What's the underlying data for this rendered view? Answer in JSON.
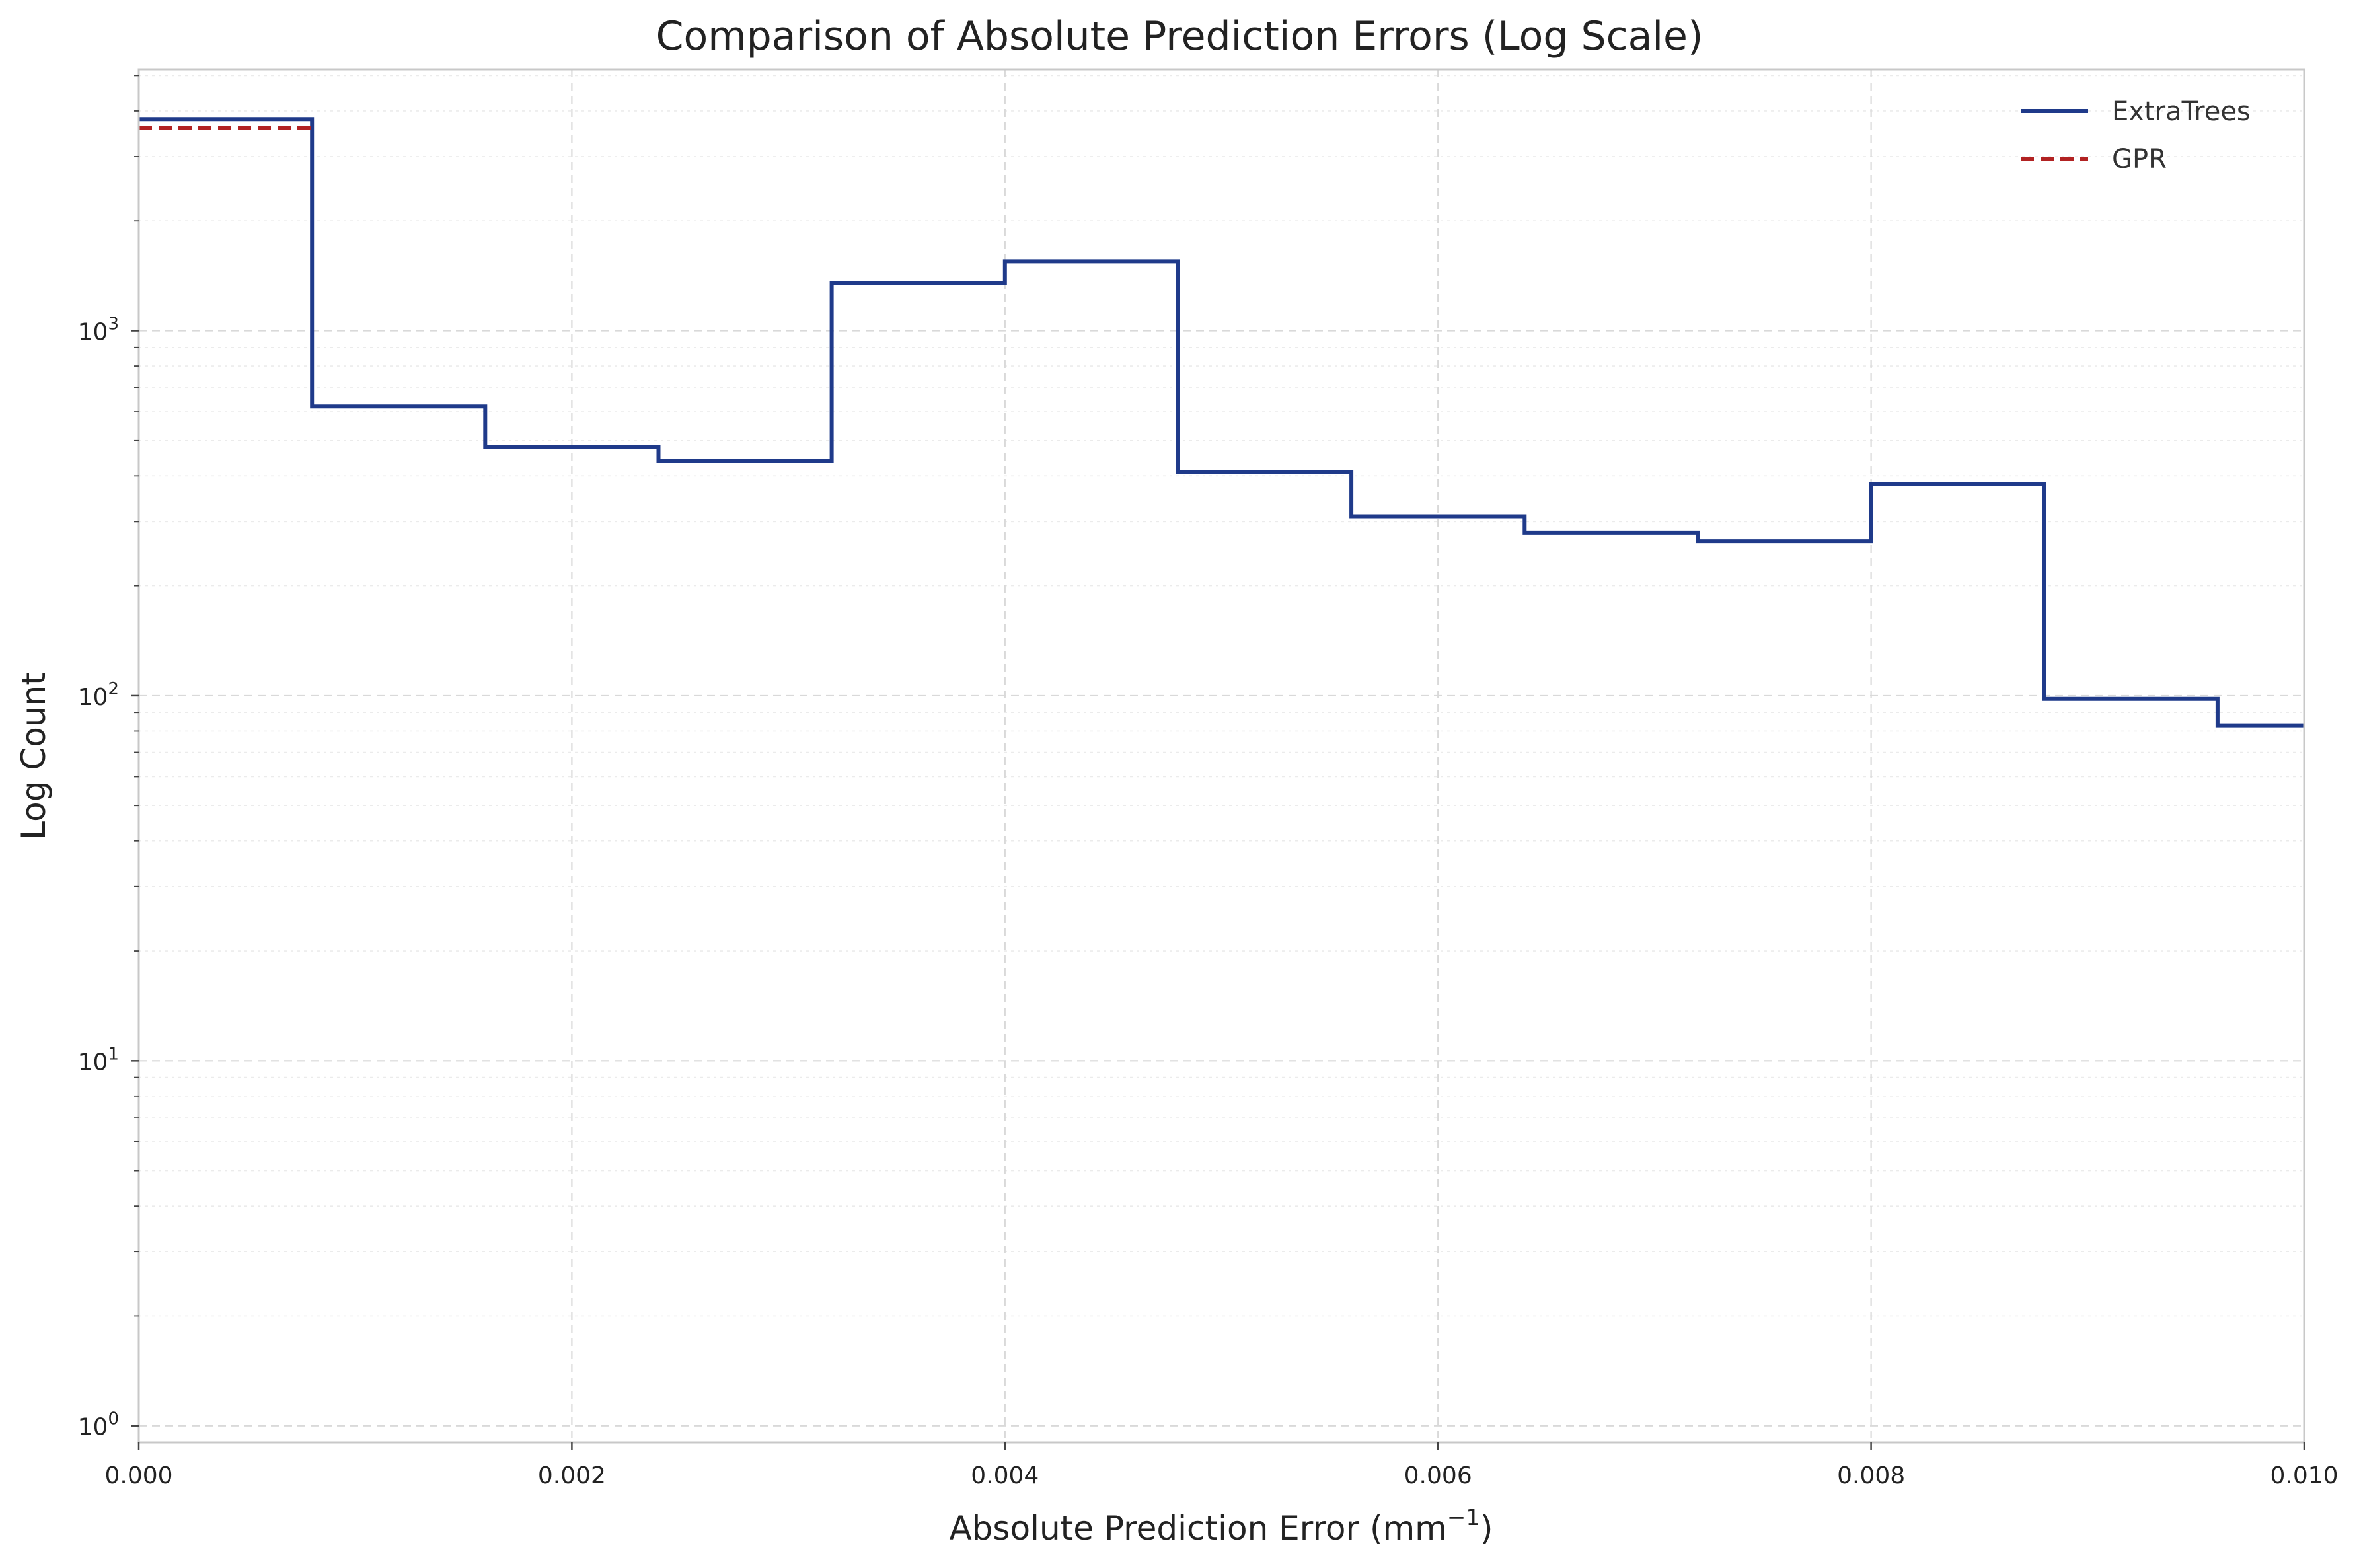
{
  "chart_data": {
    "type": "line",
    "title": "Comparison of Absolute Prediction Errors (Log Scale)",
    "xlabel": "Absolute Prediction Error (mm",
    "xlabel_superscript": "−1",
    "xlabel_suffix": ")",
    "ylabel": "Log Count",
    "xlim": [
      0,
      0.01
    ],
    "ylim": [
      0.9,
      5200
    ],
    "yscale": "log",
    "grid": true,
    "legend_position": "top-right",
    "x_ticks": [
      "0.000",
      "0.002",
      "0.004",
      "0.006",
      "0.008",
      "0.010"
    ],
    "y_ticks": [
      {
        "base": "10",
        "exp": "0"
      },
      {
        "base": "10",
        "exp": "1"
      },
      {
        "base": "10",
        "exp": "2"
      },
      {
        "base": "10",
        "exp": "3"
      }
    ],
    "bin_edges": [
      0,
      0.0008,
      0.0016,
      0.0024,
      0.0032,
      0.004,
      0.0048,
      0.0056,
      0.0064,
      0.0072,
      0.008,
      0.0088,
      0.0096,
      0.0104
    ],
    "series": [
      {
        "name": "ExtraTrees",
        "color": "#1f3a8a",
        "style": "solid",
        "values": [
          3800,
          620,
          480,
          440,
          1350,
          1550,
          410,
          310,
          280,
          265,
          380,
          98,
          83
        ]
      },
      {
        "name": "GPR",
        "color": "#b22222",
        "style": "dashed",
        "values": [
          3600,
          0,
          0,
          0,
          0,
          0,
          0,
          0,
          0,
          0,
          0,
          0,
          0
        ]
      }
    ]
  }
}
